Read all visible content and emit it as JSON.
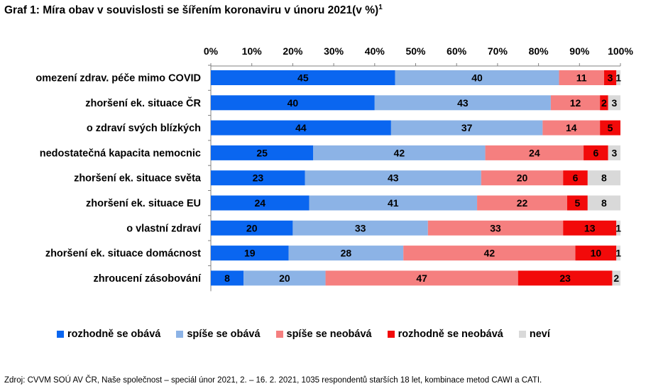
{
  "title": "Graf 1: Míra obav v souvislosti se šířením koronaviru v únoru 2021(v %)",
  "title_sup": "1",
  "source": "Zdroj: CVVM SOÚ AV ČR, Naše společnost – speciál únor 2021, 2. – 16. 2. 2021, 1035 respondentů starších 18 let, kombinace metod CAWI a CATI.",
  "chart_data": {
    "type": "bar",
    "orientation": "horizontal",
    "stacked": true,
    "percent_stacked": true,
    "xlim": [
      0,
      100
    ],
    "x_ticks": [
      "0%",
      "10%",
      "20%",
      "30%",
      "40%",
      "50%",
      "60%",
      "70%",
      "80%",
      "90%",
      "100%"
    ],
    "categories": [
      "omezení zdrav. péče mimo COVID",
      "zhoršení ek. situace ČR",
      "o zdraví svých blízkých",
      "nedostatečná kapacita nemocnic",
      "zhoršení ek. situace světa",
      "zhoršení ek. situace EU",
      "o vlastní zdraví",
      "zhoršení ek. situace domácnost",
      "zhroucení zásobování"
    ],
    "series": [
      {
        "name": "rozhodně se obává",
        "color": "#0a66f0",
        "values": [
          45,
          40,
          44,
          25,
          23,
          24,
          20,
          19,
          8
        ]
      },
      {
        "name": "spíše se obává",
        "color": "#8cb3e6",
        "values": [
          40,
          43,
          37,
          42,
          43,
          41,
          33,
          28,
          20
        ]
      },
      {
        "name": "spíše se neobává",
        "color": "#f57f7f",
        "values": [
          11,
          12,
          14,
          24,
          20,
          22,
          33,
          42,
          47
        ]
      },
      {
        "name": "rozhodně se neobává",
        "color": "#f20a0a",
        "values": [
          3,
          2,
          5,
          6,
          6,
          5,
          13,
          10,
          23
        ]
      },
      {
        "name": "neví",
        "color": "#d9d9d9",
        "values": [
          1,
          3,
          0,
          3,
          8,
          8,
          1,
          1,
          2
        ]
      }
    ],
    "grid": false,
    "legend_position": "bottom"
  }
}
